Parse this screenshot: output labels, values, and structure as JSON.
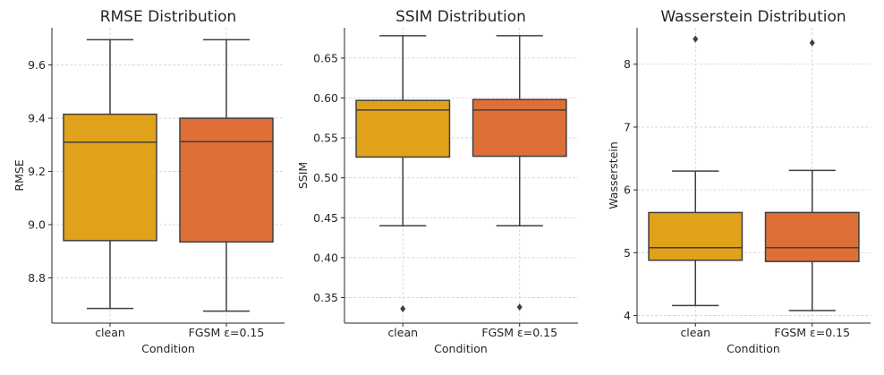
{
  "chart_data": [
    {
      "type": "box",
      "title": "RMSE Distribution",
      "xlabel": "Condition",
      "ylabel": "RMSE",
      "ylim": [
        8.63,
        9.74
      ],
      "yticks": [
        8.8,
        9.0,
        9.2,
        9.4,
        9.6
      ],
      "ytick_labels": [
        "8.8",
        "9.0",
        "9.2",
        "9.4",
        "9.6"
      ],
      "categories": [
        "clean",
        "FGSM ε=0.15"
      ],
      "grid": true,
      "boxes": [
        {
          "category": "clean",
          "color": "#E1A21B",
          "whisker_low": 8.685,
          "q1": 8.94,
          "median": 9.31,
          "q3": 9.415,
          "whisker_high": 9.695,
          "outliers": []
        },
        {
          "category": "FGSM ε=0.15",
          "color": "#DE6F37",
          "whisker_low": 8.675,
          "q1": 8.935,
          "median": 9.312,
          "q3": 9.4,
          "whisker_high": 9.695,
          "outliers": []
        }
      ]
    },
    {
      "type": "box",
      "title": "SSIM Distribution",
      "xlabel": "Condition",
      "ylabel": "SSIM",
      "ylim": [
        0.318,
        0.688
      ],
      "yticks": [
        0.35,
        0.4,
        0.45,
        0.5,
        0.55,
        0.6,
        0.65
      ],
      "ytick_labels": [
        "0.35",
        "0.40",
        "0.45",
        "0.50",
        "0.55",
        "0.60",
        "0.65"
      ],
      "categories": [
        "clean",
        "FGSM ε=0.15"
      ],
      "grid": true,
      "boxes": [
        {
          "category": "clean",
          "color": "#E1A21B",
          "whisker_low": 0.44,
          "q1": 0.526,
          "median": 0.585,
          "q3": 0.597,
          "whisker_high": 0.678,
          "outliers": [
            0.336
          ]
        },
        {
          "category": "FGSM ε=0.15",
          "color": "#DE6F37",
          "whisker_low": 0.44,
          "q1": 0.527,
          "median": 0.585,
          "q3": 0.598,
          "whisker_high": 0.678,
          "outliers": [
            0.338
          ]
        }
      ]
    },
    {
      "type": "box",
      "title": "Wasserstein Distribution",
      "xlabel": "Condition",
      "ylabel": "Wasserstein",
      "ylim": [
        3.88,
        8.58
      ],
      "yticks": [
        4,
        5,
        6,
        7,
        8
      ],
      "ytick_labels": [
        "4",
        "5",
        "6",
        "7",
        "8"
      ],
      "categories": [
        "clean",
        "FGSM ε=0.15"
      ],
      "grid": true,
      "boxes": [
        {
          "category": "clean",
          "color": "#E1A21B",
          "whisker_low": 4.16,
          "q1": 4.88,
          "median": 5.08,
          "q3": 5.64,
          "whisker_high": 6.3,
          "outliers": [
            8.4
          ]
        },
        {
          "category": "FGSM ε=0.15",
          "color": "#DE6F37",
          "whisker_low": 4.08,
          "q1": 4.86,
          "median": 5.08,
          "q3": 5.64,
          "whisker_high": 6.31,
          "outliers": [
            8.34
          ]
        }
      ]
    }
  ]
}
